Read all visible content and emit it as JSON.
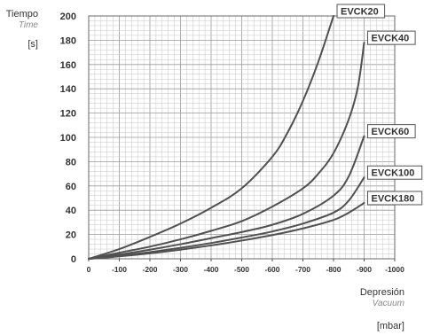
{
  "chart_data": {
    "type": "line",
    "ylabel": "Tiempo",
    "ylabel_alt": "Time",
    "yunit": "[s]",
    "xlabel": "Depresión",
    "xlabel_alt": "Vacuum",
    "xunit": "[mbar]",
    "xlim": [
      0,
      -1000
    ],
    "ylim": [
      0,
      200
    ],
    "x_ticks": [
      0,
      -100,
      -200,
      -300,
      -400,
      -500,
      -600,
      -700,
      -800,
      -900,
      -1000
    ],
    "x_tick_labels": [
      "0",
      "-100",
      "-200",
      "-300",
      "-400",
      "-500",
      "-600",
      "-700",
      "-800",
      "-900",
      "-1000"
    ],
    "y_ticks": [
      0,
      20,
      40,
      60,
      80,
      100,
      120,
      140,
      160,
      180,
      200
    ],
    "y_tick_labels": [
      "0",
      "20",
      "40",
      "60",
      "80",
      "100",
      "120",
      "140",
      "160",
      "180",
      "200"
    ],
    "grid": true,
    "line_color": "#505050",
    "grid_color": "#c6c6c6",
    "series": [
      {
        "name": "EVCK20",
        "x": [
          0,
          -100,
          -200,
          -300,
          -400,
          -500,
          -600,
          -650,
          -700,
          -750,
          -800
        ],
        "y": [
          0,
          8,
          18,
          29,
          42,
          58,
          84,
          104,
          130,
          162,
          200
        ]
      },
      {
        "name": "EVCK40",
        "x": [
          0,
          -100,
          -200,
          -300,
          -400,
          -500,
          -600,
          -700,
          -750,
          -800,
          -850,
          -880,
          -900
        ],
        "y": [
          0,
          5,
          10,
          16,
          23,
          31,
          43,
          58,
          70,
          87,
          115,
          142,
          178
        ]
      },
      {
        "name": "EVCK60",
        "x": [
          0,
          -100,
          -200,
          -300,
          -400,
          -500,
          -600,
          -700,
          -800,
          -850,
          -900
        ],
        "y": [
          0,
          3.5,
          7.5,
          12,
          17,
          22,
          28,
          37,
          52,
          68,
          101
        ]
      },
      {
        "name": "EVCK100",
        "x": [
          0,
          -100,
          -200,
          -300,
          -400,
          -500,
          -600,
          -700,
          -800,
          -850,
          -900
        ],
        "y": [
          0,
          2.5,
          5.5,
          9,
          13,
          17.5,
          22.5,
          29,
          38,
          48,
          67
        ]
      },
      {
        "name": "EVCK180",
        "x": [
          0,
          -100,
          -200,
          -300,
          -400,
          -500,
          -600,
          -700,
          -800,
          -850,
          -900
        ],
        "y": [
          0,
          2,
          4.5,
          7.5,
          11,
          15,
          19.5,
          25,
          32,
          38,
          46
        ]
      }
    ]
  }
}
